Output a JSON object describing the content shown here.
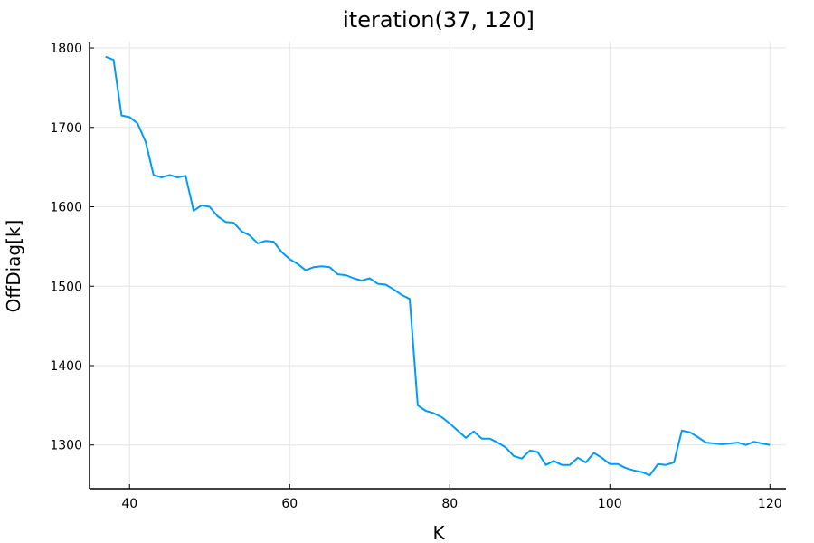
{
  "chart_data": {
    "type": "line",
    "title": "iteration(37, 120]",
    "xlabel": "K",
    "ylabel": "OffDiag[k]",
    "xlim": [
      35,
      122
    ],
    "ylim": [
      1245,
      1808
    ],
    "xticks": [
      40,
      60,
      80,
      100,
      120
    ],
    "yticks": [
      1300,
      1400,
      1500,
      1600,
      1700,
      1800
    ],
    "grid": true,
    "legend": "none",
    "series": [
      {
        "color": "#009AF9",
        "x": [
          37,
          38,
          39,
          40,
          41,
          42,
          43,
          44,
          45,
          46,
          47,
          48,
          49,
          50,
          51,
          52,
          53,
          54,
          55,
          56,
          57,
          58,
          59,
          60,
          61,
          62,
          63,
          64,
          65,
          66,
          67,
          68,
          69,
          70,
          71,
          72,
          73,
          74,
          75,
          76,
          77,
          78,
          79,
          80,
          81,
          82,
          83,
          84,
          85,
          86,
          87,
          88,
          89,
          90,
          91,
          92,
          93,
          94,
          95,
          96,
          97,
          98,
          99,
          100,
          101,
          102,
          103,
          104,
          105,
          106,
          107,
          108,
          109,
          110,
          111,
          112,
          113,
          114,
          115,
          116,
          117,
          118,
          119,
          120
        ],
        "y": [
          1789,
          1785,
          1715,
          1713,
          1705,
          1682,
          1640,
          1637,
          1640,
          1637,
          1639,
          1595,
          1602,
          1600,
          1588,
          1581,
          1580,
          1569,
          1564,
          1554,
          1557,
          1556,
          1543,
          1534,
          1528,
          1520,
          1524,
          1525,
          1524,
          1515,
          1514,
          1510,
          1507,
          1510,
          1503,
          1502,
          1496,
          1489,
          1484,
          1350,
          1343,
          1340,
          1335,
          1327,
          1318,
          1309,
          1317,
          1308,
          1308,
          1303,
          1297,
          1286,
          1283,
          1293,
          1291,
          1275,
          1280,
          1275,
          1275,
          1284,
          1278,
          1290,
          1284,
          1276,
          1276,
          1271,
          1268,
          1266,
          1262,
          1276,
          1275,
          1278,
          1318,
          1316,
          1310,
          1303,
          1302,
          1301,
          1302,
          1303,
          1300,
          1304,
          1302,
          1300
        ]
      }
    ]
  }
}
